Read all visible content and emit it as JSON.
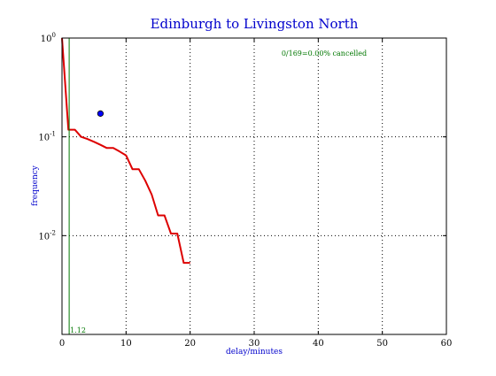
{
  "chart_data": {
    "type": "line",
    "title": "Edinburgh to Livingston North",
    "xlabel": "delay/minutes",
    "ylabel": "frequency",
    "xlim": [
      0,
      60
    ],
    "ylim": [
      0.001,
      1
    ],
    "yscale": "log",
    "grid": true,
    "x_ticks": [
      {
        "value": 0,
        "label": "0"
      },
      {
        "value": 10,
        "label": "10"
      },
      {
        "value": 20,
        "label": "20"
      },
      {
        "value": 30,
        "label": "30"
      },
      {
        "value": 40,
        "label": "40"
      },
      {
        "value": 50,
        "label": "50"
      },
      {
        "value": 60,
        "label": "60"
      }
    ],
    "y_ticks": [
      {
        "value": 1,
        "base": "10",
        "exp": "0"
      },
      {
        "value": 0.1,
        "base": "10",
        "exp": "-1"
      },
      {
        "value": 0.01,
        "base": "10",
        "exp": "-2"
      }
    ],
    "annotation": "0/169=0.00% cancelled",
    "series": [
      {
        "color": "#dd0000",
        "x": [
          0,
          1,
          2,
          3,
          4,
          5,
          6,
          7,
          8,
          9,
          10,
          11,
          12,
          13,
          14,
          15,
          16,
          17,
          18,
          19,
          20
        ],
        "y": [
          1.0,
          0.118,
          0.118,
          0.1,
          0.095,
          0.089,
          0.083,
          0.077,
          0.077,
          0.071,
          0.065,
          0.047,
          0.047,
          0.036,
          0.026,
          0.016,
          0.016,
          0.0105,
          0.0105,
          0.0053,
          0.0053
        ]
      }
    ],
    "points": [
      {
        "x": 6,
        "y": 0.172,
        "color": "#0000ff"
      }
    ],
    "vline": {
      "x": 1.12,
      "label": "1.12",
      "color": "#007700"
    }
  }
}
